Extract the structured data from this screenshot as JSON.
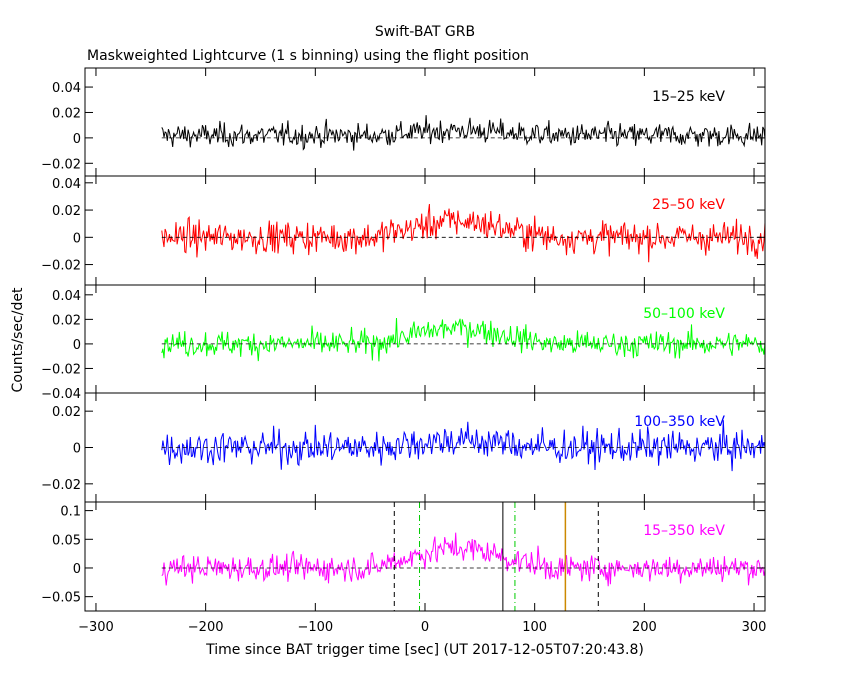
{
  "header": {
    "title": "Swift-BAT GRB",
    "subtitle": "Maskweighted Lightcurve (1 s binning) using the flight position"
  },
  "axis": {
    "xlabel": "Time since BAT trigger time [sec] (UT 2017-12-05T07:20:43.8)",
    "ylabel": "Counts/sec/det"
  },
  "chart_data": {
    "type": "line",
    "xlim": [
      -310,
      310
    ],
    "data_range": [
      -240,
      310
    ],
    "x_ticks": [
      -300,
      -200,
      -100,
      0,
      100,
      200,
      300
    ],
    "x_tick_labels": [
      "−300",
      "−200",
      "−100",
      "0",
      "100",
      "200",
      "300"
    ],
    "panels": [
      {
        "band": "15–25 keV",
        "color": "#000000",
        "ylim": [
          -0.03,
          0.055
        ],
        "y_ticks": [
          -0.02,
          0,
          0.02,
          0.04
        ],
        "y_tick_labels": [
          "−0.02",
          "0",
          "0.02",
          "0.04"
        ],
        "noise": 0.0085,
        "baseline": 0.002,
        "burst": 0.004
      },
      {
        "band": "25–50 keV",
        "color": "#ff0000",
        "ylim": [
          -0.035,
          0.045
        ],
        "y_ticks": [
          -0.02,
          0,
          0.02,
          0.04
        ],
        "y_tick_labels": [
          "−0.02",
          "0",
          "0.02",
          "0.04"
        ],
        "noise": 0.0105,
        "baseline": 0.0,
        "burst": 0.012
      },
      {
        "band": "50–100 keV",
        "color": "#00ff00",
        "ylim": [
          -0.04,
          0.048
        ],
        "y_ticks": [
          -0.04,
          -0.02,
          0,
          0.02,
          0.04
        ],
        "y_tick_labels": [
          "−0.04",
          "−0.02",
          "0",
          "0.02",
          "0.04"
        ],
        "noise": 0.0095,
        "baseline": 0.0,
        "burst": 0.013
      },
      {
        "band": "100–350 keV",
        "color": "#0000ff",
        "ylim": [
          -0.03,
          0.03
        ],
        "y_ticks": [
          -0.02,
          0,
          0.02
        ],
        "y_tick_labels": [
          "−0.02",
          "0",
          "0.02"
        ],
        "noise": 0.0085,
        "baseline": 0.0,
        "burst": 0.004
      },
      {
        "band": "15–350 keV",
        "color": "#ff00ff",
        "ylim": [
          -0.075,
          0.115
        ],
        "y_ticks": [
          -0.05,
          0,
          0.05,
          0.1
        ],
        "y_tick_labels": [
          "−0.05",
          "0",
          "0.05",
          "0.1"
        ],
        "noise": 0.021,
        "baseline": 0.0,
        "burst": 0.035
      }
    ],
    "markers": [
      {
        "x": -28,
        "color": "#000000",
        "style": "dashed"
      },
      {
        "x": -5,
        "color": "#00cc00",
        "style": "dashdot"
      },
      {
        "x": 71,
        "color": "#000000",
        "style": "solid"
      },
      {
        "x": 82,
        "color": "#00cc00",
        "style": "dashdot"
      },
      {
        "x": 128,
        "color": "#cc8800",
        "style": "solid"
      },
      {
        "x": 158,
        "color": "#000000",
        "style": "dashed"
      }
    ]
  }
}
